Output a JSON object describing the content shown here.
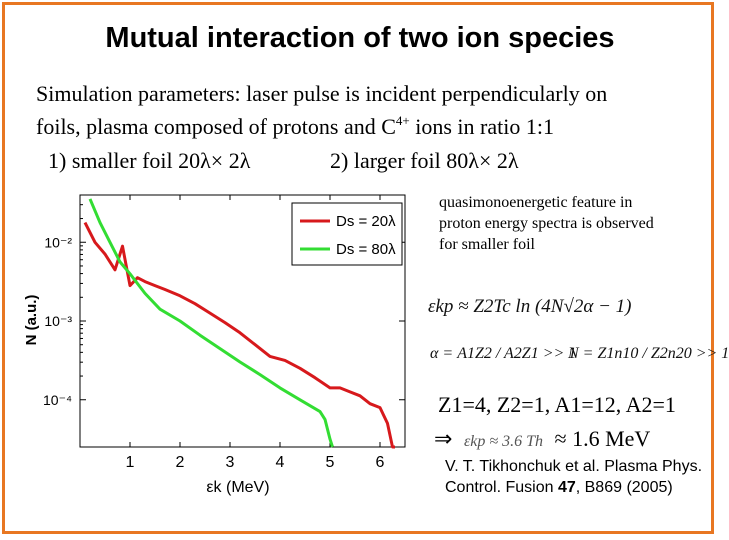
{
  "slide": {
    "title": "Mutual interaction of two ion species",
    "params_line1": "Simulation parameters: laser pulse is incident perpendicularly on",
    "params_line2_a": "foils, plasma composed of protons and C",
    "params_charge": "4+",
    "params_line2_b": " ions in ratio 1:1",
    "foil_small": "1) smaller foil 20λ× 2λ",
    "foil_large": "2) larger foil 80λ× 2λ",
    "note": "quasimonoenergetic feature in proton energy spectra is observed for smaller foil",
    "formula_energy": "εkp ≈ Z2Tc ln (4N√2α − 1)",
    "formula_alpha": "α = A1Z2 / A2Z1 >> 1",
    "formula_n": "N = Z1n10 / Z2n20 >> 1",
    "z_values": {
      "Z1": "Z1=4,",
      "Z2": "Z2=1,",
      "A1": "A1=12,",
      "A2": "A2=1"
    },
    "result_arrow": "⇒",
    "result_formula": "εkp ≈ 3.6 Th",
    "result_value": "≈ 1.6 MeV",
    "reference": {
      "authors": "V. T. Tikhonchuk et al. Plasma Phys. Control. Fusion ",
      "volume": "47",
      "pages": ", B869 (2005)"
    },
    "accent_color": "#e87722"
  },
  "chart_data": {
    "type": "line",
    "title": "",
    "xlabel": "εk (MeV)",
    "ylabel": "N (a.u.)",
    "xlim": [
      0,
      6.5
    ],
    "ylim_log10": [
      -4.6,
      -1.4
    ],
    "yscale": "log",
    "x_ticks": [
      1,
      2,
      3,
      4,
      5,
      6
    ],
    "x_tick_labels": [
      "1",
      "2",
      "3",
      "4",
      "5",
      "6"
    ],
    "y_ticks_log10": [
      -2,
      -3,
      -4
    ],
    "y_tick_labels": [
      "10⁻²",
      "10⁻³",
      "10⁻⁴"
    ],
    "legend_position": "top-right",
    "series": [
      {
        "name": "Ds = 20λ",
        "color": "#d7191c",
        "x": [
          0.1,
          0.3,
          0.5,
          0.7,
          0.85,
          1.0,
          1.15,
          1.3,
          1.5,
          1.7,
          2.0,
          2.3,
          2.6,
          2.9,
          3.2,
          3.5,
          3.8,
          4.1,
          4.4,
          4.7,
          5.0,
          5.2,
          5.4,
          5.6,
          5.8,
          6.0,
          6.15,
          6.25,
          6.3
        ],
        "y_log10": [
          -1.75,
          -2.0,
          -2.15,
          -2.35,
          -2.05,
          -2.55,
          -2.45,
          -2.5,
          -2.55,
          -2.6,
          -2.68,
          -2.78,
          -2.9,
          -3.02,
          -3.15,
          -3.3,
          -3.45,
          -3.5,
          -3.6,
          -3.72,
          -3.85,
          -3.85,
          -3.9,
          -3.95,
          -4.05,
          -4.1,
          -4.3,
          -4.6,
          -4.6
        ]
      },
      {
        "name": "Ds = 80λ",
        "color": "#33dd33",
        "x": [
          0.2,
          0.4,
          0.6,
          0.8,
          1.0,
          1.3,
          1.6,
          2.0,
          2.4,
          2.8,
          3.2,
          3.6,
          4.0,
          4.4,
          4.8,
          4.9,
          5.0,
          5.05
        ],
        "y_log10": [
          -1.45,
          -1.75,
          -2.0,
          -2.25,
          -2.4,
          -2.65,
          -2.85,
          -3.0,
          -3.18,
          -3.35,
          -3.52,
          -3.68,
          -3.85,
          -4.0,
          -4.15,
          -4.25,
          -4.5,
          -4.6
        ]
      }
    ]
  }
}
